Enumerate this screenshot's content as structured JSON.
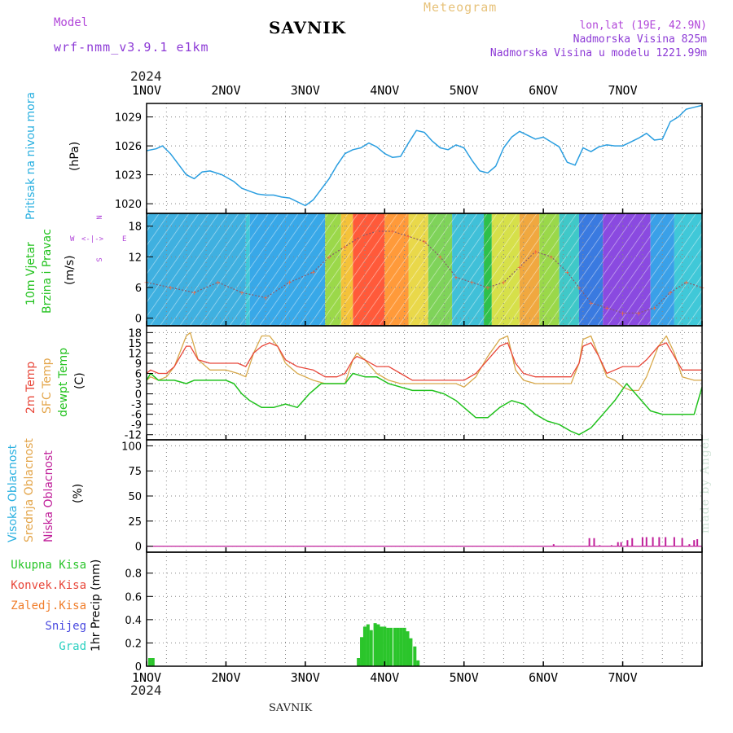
{
  "header": {
    "station": "SAVNIK",
    "product": "Meteogram",
    "model_label": "Model",
    "model_name": "wrf-nmm_v3.9.1  e1km",
    "coords": "lon,lat (19E, 42.9N)",
    "elevation": "Nadmorska Visina 825m",
    "model_elevation": "Nadmorska Visina u modelu 1221.99m"
  },
  "year": "2024",
  "footer_station": "SAVNIK",
  "credit": "made by Angel",
  "colors": {
    "pressure": "#2a9ee0",
    "temp2m": "#e8473a",
    "sfc": "#d7a84a",
    "dewpt": "#22c21e",
    "high_cloud": "#2ab0e0",
    "mid_cloud": "#e3a54a",
    "low_cloud": "#c0209a",
    "precip": "#2bc52b",
    "wind_speed": "#ff6a3a"
  },
  "panels": {
    "pressure": {
      "label": "Pritisak na nivou mora",
      "unit": "(hPa)"
    },
    "wind": {
      "label1": "10m Vjetar",
      "label2": "Brzina i Pravac",
      "unit": "(m/s)",
      "compass_n": "N",
      "compass_w": "W",
      "compass_e": "E",
      "compass_s": "S"
    },
    "temp": {
      "label1": "2m Temp",
      "label2": "SFC Temp",
      "label3": "dewpt Temp",
      "unit": "(C)"
    },
    "cloud": {
      "label1": "Visoka Oblacnost",
      "label2": "Srednja Oblacnost",
      "label3": "Niska Oblacnost",
      "unit": "(%)"
    },
    "precip": {
      "label_total": "Ukupna Kisa",
      "label_conv": "Konvek.Kisa",
      "label_frozen": "Zaledj.Kisa",
      "label_snow": "Snijeg",
      "label_hail": "Grad",
      "unit": "1hr Precip (mm)"
    }
  },
  "chart_data": [
    {
      "type": "line",
      "panel": "pressure",
      "x_unit": "days since 1 NOV 2024 00 UTC",
      "x_ticks": [
        "1NOV",
        "2NOV",
        "3NOV",
        "4NOV",
        "5NOV",
        "6NOV",
        "7NOV"
      ],
      "ylabel": "(hPa)",
      "yticks": [
        1020,
        1023,
        1026,
        1029
      ],
      "ylim": [
        1019,
        1030.4
      ],
      "series": [
        {
          "name": "Pritisak na nivou mora",
          "x": [
            0,
            0.12,
            0.2,
            0.3,
            0.4,
            0.5,
            0.6,
            0.7,
            0.8,
            0.95,
            1.1,
            1.2,
            1.3,
            1.4,
            1.5,
            1.6,
            1.7,
            1.8,
            2.0,
            2.1,
            2.2,
            2.3,
            2.4,
            2.5,
            2.6,
            2.7,
            2.8,
            2.9,
            3.0,
            3.1,
            3.2,
            3.3,
            3.4,
            3.5,
            3.6,
            3.7,
            3.8,
            3.9,
            4.0,
            4.1,
            4.2,
            4.3,
            4.4,
            4.5,
            4.6,
            4.7,
            4.8,
            4.9,
            5.0,
            5.1,
            5.2,
            5.3,
            5.4,
            5.5,
            5.6,
            5.7,
            5.8,
            5.9,
            6.0,
            6.1,
            6.2,
            6.3,
            6.4,
            6.5,
            6.6,
            6.7,
            6.8,
            6.9,
            7.0
          ],
          "y": [
            1025.5,
            1025.7,
            1026.0,
            1025.2,
            1024.1,
            1023.0,
            1022.6,
            1023.3,
            1023.4,
            1023.0,
            1022.3,
            1021.6,
            1021.3,
            1021.0,
            1020.9,
            1020.9,
            1020.7,
            1020.6,
            1019.8,
            1020.4,
            1021.5,
            1022.6,
            1024.0,
            1025.2,
            1025.6,
            1025.8,
            1026.3,
            1025.9,
            1025.2,
            1024.8,
            1024.9,
            1026.3,
            1027.6,
            1027.4,
            1026.5,
            1025.8,
            1025.6,
            1026.1,
            1025.8,
            1024.5,
            1023.4,
            1023.2,
            1023.9,
            1025.8,
            1026.9,
            1027.5,
            1027.1,
            1026.7,
            1026.9,
            1026.4,
            1025.9,
            1024.3,
            1024.0,
            1025.8,
            1025.4,
            1025.9,
            1026.1,
            1026.0,
            1026.0,
            1026.4,
            1026.8,
            1027.3,
            1026.6,
            1026.7,
            1028.5,
            1029.0,
            1029.8,
            1030.0,
            1030.2
          ]
        }
      ]
    },
    {
      "type": "line",
      "panel": "wind",
      "x_ticks": [
        "1NOV",
        "2NOV",
        "3NOV",
        "4NOV",
        "5NOV",
        "6NOV",
        "7NOV"
      ],
      "ylabel": "(m/s)",
      "yticks": [
        0,
        6,
        12,
        18
      ],
      "ylim": [
        -1.5,
        20.5
      ],
      "series": [
        {
          "name": "10m Vjetar Brzina",
          "x": [
            0,
            0.3,
            0.6,
            0.9,
            1.2,
            1.5,
            1.8,
            2.1,
            2.3,
            2.5,
            2.7,
            2.9,
            3.1,
            3.3,
            3.5,
            3.7,
            3.9,
            4.1,
            4.3,
            4.5,
            4.7,
            4.9,
            5.1,
            5.3,
            5.45,
            5.6,
            5.8,
            6.0,
            6.2,
            6.4,
            6.6,
            6.8,
            7.0
          ],
          "y": [
            7,
            6,
            5,
            7,
            5,
            4,
            7,
            9,
            12,
            14,
            16,
            17,
            17,
            16,
            15,
            12,
            8,
            7,
            6,
            7,
            10,
            13,
            12,
            9,
            6,
            3,
            2,
            1,
            1,
            2,
            5,
            7,
            6
          ]
        },
        {
          "name": "Wind direction (deg)",
          "x": [
            0,
            0.5,
            1.0,
            1.5,
            2.0,
            2.3,
            3.0,
            3.5,
            4.0,
            4.5,
            5.0,
            5.5,
            6.0,
            6.5,
            7.0
          ],
          "y": [
            250,
            270,
            290,
            260,
            230,
            200,
            195,
            200,
            250,
            210,
            220,
            280,
            285,
            300,
            270
          ]
        }
      ]
    },
    {
      "type": "line",
      "panel": "temp",
      "x_ticks": [
        "1NOV",
        "2NOV",
        "3NOV",
        "4NOV",
        "5NOV",
        "6NOV",
        "7NOV"
      ],
      "ylabel": "(C)",
      "yticks": [
        -12,
        -9,
        -6,
        -3,
        0,
        3,
        6,
        9,
        12,
        15,
        18
      ],
      "ylim": [
        -13.5,
        20
      ],
      "series": [
        {
          "name": "2m Temp",
          "x": [
            0,
            0.05,
            0.15,
            0.25,
            0.35,
            0.45,
            0.5,
            0.55,
            0.65,
            0.8,
            1.0,
            1.15,
            1.25,
            1.35,
            1.45,
            1.55,
            1.65,
            1.75,
            1.9,
            2.1,
            2.25,
            2.4,
            2.5,
            2.6,
            2.65,
            2.75,
            2.9,
            3.05,
            3.2,
            3.35,
            3.5,
            3.6,
            3.7,
            3.8,
            3.9,
            4.0,
            4.15,
            4.3,
            4.45,
            4.55,
            4.65,
            4.75,
            4.9,
            5.05,
            5.2,
            5.35,
            5.45,
            5.5,
            5.6,
            5.7,
            5.8,
            5.9,
            6.0,
            6.1,
            6.2,
            6.3,
            6.45,
            6.55,
            6.65,
            6.75,
            6.9,
            7.0
          ],
          "y": [
            6,
            7,
            6,
            6,
            8,
            12,
            14,
            14,
            10,
            9,
            9,
            9,
            8,
            12,
            14,
            15,
            14,
            10,
            8,
            7,
            5,
            5,
            6,
            10,
            11,
            10,
            8,
            8,
            6,
            4,
            4,
            4,
            4,
            4,
            4,
            4,
            6,
            10,
            14,
            15,
            9,
            6,
            5,
            5,
            5,
            5,
            9,
            14,
            15,
            11,
            6,
            7,
            8,
            8,
            8,
            10,
            14,
            15,
            11,
            7,
            7,
            7
          ]
        },
        {
          "name": "SFC Temp",
          "x": [
            0,
            0.05,
            0.15,
            0.25,
            0.35,
            0.45,
            0.5,
            0.55,
            0.65,
            0.8,
            1.0,
            1.15,
            1.25,
            1.35,
            1.45,
            1.55,
            1.65,
            1.75,
            1.9,
            2.1,
            2.25,
            2.4,
            2.5,
            2.6,
            2.65,
            2.75,
            2.9,
            3.05,
            3.2,
            3.35,
            3.5,
            3.6,
            3.7,
            3.8,
            3.9,
            4.0,
            4.15,
            4.3,
            4.45,
            4.55,
            4.65,
            4.75,
            4.9,
            5.05,
            5.2,
            5.35,
            5.45,
            5.5,
            5.6,
            5.7,
            5.8,
            5.9,
            6.0,
            6.1,
            6.2,
            6.3,
            6.45,
            6.55,
            6.65,
            6.75,
            6.9,
            7.0
          ],
          "y": [
            4,
            5,
            4,
            5,
            8,
            14,
            17,
            18,
            10,
            7,
            7,
            6,
            5,
            12,
            17,
            17,
            14,
            9,
            6,
            4,
            3,
            3,
            3,
            10,
            12,
            10,
            6,
            4,
            3,
            3,
            3,
            3,
            3,
            3,
            3,
            2,
            5,
            11,
            16,
            17,
            7,
            4,
            3,
            3,
            3,
            3,
            9,
            16,
            17,
            11,
            5,
            4,
            2,
            1,
            1,
            5,
            14,
            17,
            12,
            5,
            4,
            4
          ]
        },
        {
          "name": "dewpt Temp",
          "x": [
            0,
            0.05,
            0.15,
            0.35,
            0.5,
            0.6,
            0.8,
            1.0,
            1.1,
            1.2,
            1.3,
            1.45,
            1.6,
            1.75,
            1.9,
            2.05,
            2.2,
            2.35,
            2.5,
            2.6,
            2.75,
            2.9,
            3.05,
            3.2,
            3.35,
            3.5,
            3.6,
            3.75,
            3.9,
            4.0,
            4.15,
            4.3,
            4.45,
            4.6,
            4.75,
            4.9,
            5.05,
            5.2,
            5.35,
            5.45,
            5.6,
            5.75,
            5.9,
            6.05,
            6.2,
            6.35,
            6.5,
            6.65,
            6.8,
            6.9,
            7.0
          ],
          "y": [
            4,
            6,
            4,
            4,
            3,
            4,
            4,
            4,
            3,
            0,
            -2,
            -4,
            -4,
            -3,
            -4,
            0,
            3,
            3,
            3,
            6,
            5,
            5,
            3,
            2,
            1,
            1,
            1,
            0,
            -2,
            -4,
            -7,
            -7,
            -4,
            -2,
            -3,
            -6,
            -8,
            -9,
            -11,
            -12,
            -10,
            -6,
            -2,
            3,
            -1,
            -5,
            -6,
            -6,
            -6,
            -6,
            2
          ]
        }
      ]
    },
    {
      "type": "bar",
      "panel": "cloud",
      "x_ticks": [
        "1NOV",
        "2NOV",
        "3NOV",
        "4NOV",
        "5NOV",
        "6NOV",
        "7NOV"
      ],
      "ylabel": "(%)",
      "yticks": [
        0,
        25,
        50,
        75,
        100
      ],
      "ylim": [
        -6,
        106
      ],
      "series": [
        {
          "name": "Niska Oblacnost",
          "x": [
            5.13,
            5.58,
            5.64,
            5.71,
            5.86,
            5.94,
            5.98,
            6.06,
            6.12,
            6.25,
            6.3,
            6.38,
            6.46,
            6.54,
            6.65,
            6.75,
            6.84,
            6.9,
            6.94
          ],
          "y": [
            2,
            8,
            8,
            1,
            1,
            4,
            4,
            6,
            8,
            9,
            9,
            9,
            9,
            9,
            9,
            8,
            2,
            6,
            7
          ]
        }
      ]
    },
    {
      "type": "bar",
      "panel": "precip",
      "x_ticks": [
        "1NOV",
        "2NOV",
        "3NOV",
        "4NOV",
        "5NOV",
        "6NOV",
        "7NOV"
      ],
      "ylabel": "1hr Precip (mm)",
      "yticks": [
        0,
        0.2,
        0.4,
        0.6,
        0.8
      ],
      "ylim": [
        0,
        0.98
      ],
      "series": [
        {
          "name": "Ukupna Kisa",
          "x": [
            0.04,
            0.08,
            2.67,
            2.71,
            2.75,
            2.79,
            2.83,
            2.88,
            2.92,
            2.96,
            3.0,
            3.04,
            3.08,
            3.13,
            3.17,
            3.21,
            3.25,
            3.29,
            3.33,
            3.38,
            3.42
          ],
          "y": [
            0.07,
            0.07,
            0.07,
            0.25,
            0.34,
            0.36,
            0.31,
            0.37,
            0.36,
            0.34,
            0.34,
            0.33,
            0.33,
            0.33,
            0.33,
            0.33,
            0.33,
            0.3,
            0.24,
            0.17,
            0.05
          ]
        }
      ]
    }
  ]
}
